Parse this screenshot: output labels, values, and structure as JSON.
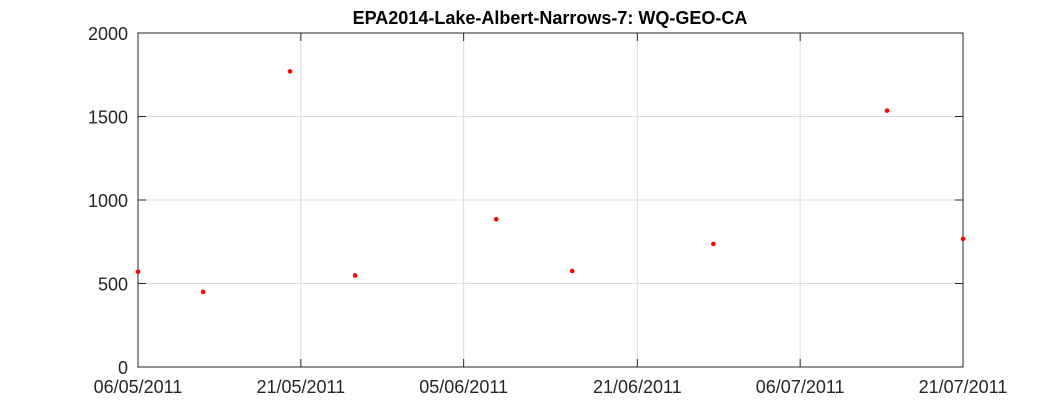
{
  "chart_data": {
    "type": "scatter",
    "title": "EPA2014-Lake-Albert-Narrows-7: WQ-GEO-CA",
    "xlabel": "",
    "ylabel": "",
    "x_axis_type": "date",
    "xlim": [
      "06/05/2011",
      "21/07/2011"
    ],
    "ylim": [
      0,
      2000
    ],
    "x_ticks": [
      "06/05/2011",
      "21/05/2011",
      "05/06/2011",
      "21/06/2011",
      "06/07/2011",
      "21/07/2011"
    ],
    "y_ticks": [
      0,
      500,
      1000,
      1500,
      2000
    ],
    "grid": true,
    "marker_color": "#ff0000",
    "series": [
      {
        "x": [
          "06/05/2011",
          "12/05/2011",
          "20/05/2011",
          "26/05/2011",
          "08/06/2011",
          "15/06/2011",
          "28/06/2011",
          "14/07/2011",
          "21/07/2011"
        ],
        "y": [
          570,
          450,
          1770,
          548,
          885,
          575,
          737,
          1535,
          767
        ]
      }
    ]
  }
}
